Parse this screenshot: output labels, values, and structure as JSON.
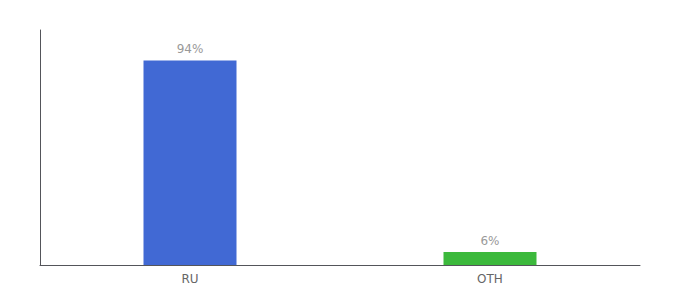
{
  "chart_data": {
    "type": "bar",
    "categories": [
      "RU",
      "OTH"
    ],
    "values": [
      94,
      6
    ],
    "value_labels": [
      "94%",
      "6%"
    ],
    "colors": [
      "#4169d4",
      "#3cb93c"
    ],
    "ylim": [
      0,
      108
    ],
    "grid": false,
    "data_labels": true,
    "tick_labels": "x"
  }
}
